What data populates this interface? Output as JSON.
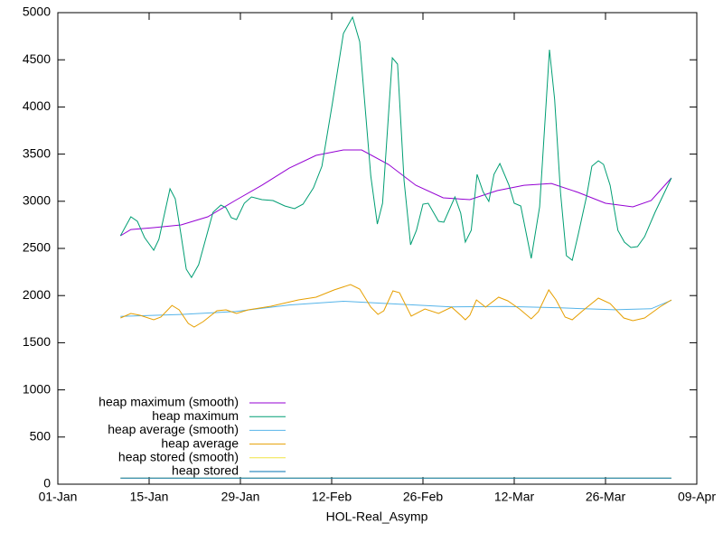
{
  "chart_data": {
    "type": "line",
    "xlabel": "HOL-Real_Asymp",
    "xlim": [
      0,
      98
    ],
    "xticks": [
      {
        "value": 0,
        "label": "01-Jan"
      },
      {
        "value": 14,
        "label": "15-Jan"
      },
      {
        "value": 28,
        "label": "29-Jan"
      },
      {
        "value": 42,
        "label": "12-Feb"
      },
      {
        "value": 56,
        "label": "26-Feb"
      },
      {
        "value": 70,
        "label": "12-Mar"
      },
      {
        "value": 84,
        "label": "26-Mar"
      },
      {
        "value": 98,
        "label": "09-Apr"
      }
    ],
    "ylim": [
      0,
      5000
    ],
    "yticks": [
      0,
      500,
      1000,
      1500,
      2000,
      2500,
      3000,
      3500,
      4000,
      4500,
      5000
    ],
    "grid": false,
    "legend": "bottom-left",
    "series": [
      {
        "name": "heap maximum (smooth)",
        "color": "#9400d3",
        "x": [
          9.6,
          11.2,
          14.7,
          18.9,
          23.0,
          27.2,
          31.3,
          35.5,
          39.6,
          43.8,
          46.6,
          50.7,
          54.9,
          59.1,
          63.2,
          67.4,
          71.5,
          75.7,
          79.8,
          84.0,
          88.2,
          91.0,
          94.1
        ],
        "values": [
          2634,
          2700,
          2720,
          2749,
          2835,
          3008,
          3170,
          3352,
          3487,
          3544,
          3544,
          3391,
          3170,
          3036,
          3017,
          3113,
          3170,
          3189,
          3094,
          2979,
          2941,
          3008,
          3247
        ]
      },
      {
        "name": "heap maximum",
        "color": "#009e73",
        "x": [
          9.6,
          11.2,
          12.2,
          13.3,
          14.7,
          15.5,
          17.2,
          18.0,
          18.9,
          19.7,
          20.5,
          21.6,
          23.8,
          25.0,
          25.8,
          26.6,
          27.4,
          28.6,
          29.7,
          31.3,
          33.0,
          34.8,
          36.3,
          37.6,
          39.2,
          40.5,
          42.1,
          43.8,
          45.2,
          46.3,
          48.0,
          49.0,
          49.8,
          51.3,
          52.1,
          53.1,
          54.1,
          55.0,
          56.0,
          56.8,
          58.4,
          59.2,
          60.9,
          61.8,
          62.5,
          63.4,
          64.3,
          65.2,
          66.1,
          66.9,
          67.8,
          69.2,
          70.0,
          71.0,
          71.8,
          72.6,
          73.9,
          75.4,
          76.2,
          77.1,
          78.0,
          78.9,
          79.8,
          81.1,
          81.9,
          82.9,
          83.7,
          84.7,
          85.9,
          86.9,
          87.9,
          88.9,
          90.0,
          91.6,
          94.1
        ],
        "values": [
          2634,
          2835,
          2787,
          2615,
          2481,
          2596,
          3132,
          3027,
          2644,
          2280,
          2193,
          2328,
          2883,
          2960,
          2931,
          2826,
          2806,
          2979,
          3046,
          3017,
          3008,
          2950,
          2921,
          2969,
          3142,
          3372,
          4033,
          4780,
          4952,
          4693,
          3266,
          2759,
          2979,
          4521,
          4454,
          3218,
          2538,
          2692,
          2969,
          2979,
          2787,
          2778,
          3046,
          2874,
          2567,
          2692,
          3285,
          3103,
          2998,
          3285,
          3400,
          3170,
          2979,
          2950,
          2672,
          2395,
          2941,
          4607,
          4080,
          3094,
          2423,
          2375,
          2644,
          3055,
          3372,
          3429,
          3391,
          3170,
          2692,
          2567,
          2510,
          2519,
          2625,
          2883,
          3247
        ]
      },
      {
        "name": "heap average (smooth)",
        "color": "#56b4e9",
        "x": [
          9.6,
          18.9,
          27.2,
          35.5,
          43.8,
          52.1,
          60.4,
          68.8,
          77.1,
          85.4,
          91.0,
          94.1
        ],
        "values": [
          1780,
          1800,
          1830,
          1900,
          1940,
          1910,
          1880,
          1885,
          1870,
          1850,
          1860,
          1950
        ]
      },
      {
        "name": "heap average",
        "color": "#e69f00",
        "x": [
          9.6,
          11.2,
          12.6,
          14.7,
          15.8,
          17.5,
          18.6,
          20.0,
          20.9,
          22.3,
          24.4,
          25.8,
          27.4,
          29.2,
          32.7,
          36.9,
          39.6,
          42.4,
          44.9,
          46.3,
          48.0,
          49.1,
          50.0,
          51.4,
          52.4,
          54.2,
          56.3,
          58.4,
          60.4,
          61.8,
          62.5,
          63.2,
          64.2,
          65.6,
          67.6,
          69.0,
          70.8,
          72.6,
          73.7,
          75.3,
          76.4,
          77.8,
          78.9,
          80.5,
          82.9,
          84.7,
          86.8,
          88.2,
          90.0,
          92.3,
          94.1
        ],
        "values": [
          1762,
          1810,
          1791,
          1743,
          1772,
          1896,
          1849,
          1705,
          1667,
          1724,
          1839,
          1849,
          1810,
          1849,
          1887,
          1954,
          1983,
          2060,
          2117,
          2069,
          1877,
          1801,
          1839,
          2050,
          2031,
          1782,
          1858,
          1810,
          1877,
          1791,
          1743,
          1791,
          1954,
          1877,
          1983,
          1944,
          1858,
          1753,
          1829,
          2060,
          1954,
          1772,
          1743,
          1839,
          1973,
          1916,
          1762,
          1734,
          1762,
          1877,
          1954
        ]
      },
      {
        "name": "heap stored (smooth)",
        "color": "#f0e442",
        "x": [
          9.6,
          94.1
        ],
        "values": [
          65,
          65
        ]
      },
      {
        "name": "heap stored",
        "color": "#0072b2",
        "x": [
          9.6,
          94.1
        ],
        "values": [
          65,
          65
        ]
      }
    ]
  }
}
